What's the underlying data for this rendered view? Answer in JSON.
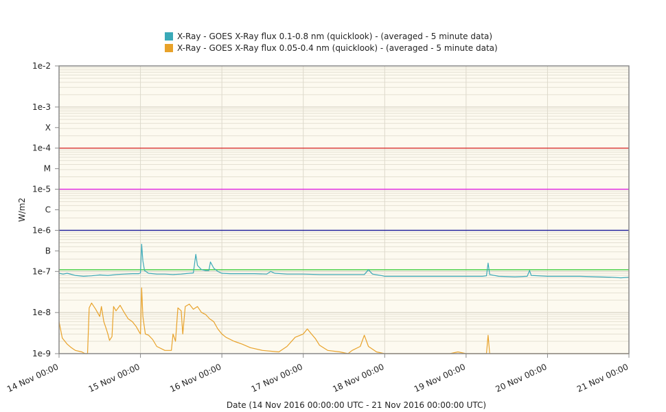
{
  "chart_data": {
    "type": "line",
    "xlabel": "Date (14 Nov 2016 00:00:00 UTC - 21 Nov 2016 00:00:00 UTC)",
    "ylabel": "W/m2",
    "yscale": "log",
    "ylim": [
      1e-09,
      0.01
    ],
    "y_ticks": [
      {
        "label": "1e-2",
        "value": 0.01
      },
      {
        "label": "1e-3",
        "value": 0.001
      },
      {
        "label": "X",
        "value": 0.000316
      },
      {
        "label": "1e-4",
        "value": 0.0001
      },
      {
        "label": "M",
        "value": 3.16e-05
      },
      {
        "label": "1e-5",
        "value": 1e-05
      },
      {
        "label": "C",
        "value": 3.16e-06
      },
      {
        "label": "1e-6",
        "value": 1e-06
      },
      {
        "label": "B",
        "value": 3.16e-07
      },
      {
        "label": "1e-7",
        "value": 1e-07
      },
      {
        "label": "1e-8",
        "value": 1e-08
      },
      {
        "label": "1e-9",
        "value": 1e-09
      }
    ],
    "x_ticks": [
      "14 Nov 00:00",
      "15 Nov 00:00",
      "16 Nov 00:00",
      "17 Nov 00:00",
      "18 Nov 00:00",
      "19 Nov 00:00",
      "20 Nov 00:00",
      "21 Nov 00:00"
    ],
    "xlim_days": [
      0,
      7
    ],
    "threshold_lines": [
      {
        "value": 0.0001,
        "color": "#d62020"
      },
      {
        "value": 1e-05,
        "color": "#e020e0"
      },
      {
        "value": 1e-06,
        "color": "#1a1a9a"
      },
      {
        "value": 1.1e-07,
        "color": "#3ecf3e"
      }
    ],
    "grid": true,
    "legend_position": "top",
    "series": [
      {
        "name": "X-Ray - GOES X-Ray flux 0.1-0.8 nm (quicklook) -  (averaged - 5 minute data)",
        "color": "#3aa9b8",
        "points": [
          [
            0.0,
            9e-08
          ],
          [
            0.05,
            8.6e-08
          ],
          [
            0.1,
            9e-08
          ],
          [
            0.2,
            8e-08
          ],
          [
            0.3,
            7.6e-08
          ],
          [
            0.4,
            7.8e-08
          ],
          [
            0.5,
            8.2e-08
          ],
          [
            0.6,
            8e-08
          ],
          [
            0.7,
            8.4e-08
          ],
          [
            0.8,
            8.6e-08
          ],
          [
            0.9,
            8.8e-08
          ],
          [
            0.98,
            8.8e-08
          ],
          [
            1.0,
            9.2e-08
          ],
          [
            1.015,
            4.6e-07
          ],
          [
            1.03,
            1.8e-07
          ],
          [
            1.05,
            1.05e-07
          ],
          [
            1.1,
            9e-08
          ],
          [
            1.2,
            8.6e-08
          ],
          [
            1.3,
            8.6e-08
          ],
          [
            1.4,
            8.4e-08
          ],
          [
            1.5,
            8.6e-08
          ],
          [
            1.6,
            9e-08
          ],
          [
            1.65,
            9.2e-08
          ],
          [
            1.68,
            2.6e-07
          ],
          [
            1.7,
            1.4e-07
          ],
          [
            1.75,
            1.1e-07
          ],
          [
            1.8,
            1.05e-07
          ],
          [
            1.84,
            1.05e-07
          ],
          [
            1.86,
            1.7e-07
          ],
          [
            1.9,
            1.2e-07
          ],
          [
            1.95,
            1e-07
          ],
          [
            2.0,
            9e-08
          ],
          [
            2.1,
            8.8e-08
          ],
          [
            2.2,
            8.8e-08
          ],
          [
            2.4,
            8.8e-08
          ],
          [
            2.55,
            8.6e-08
          ],
          [
            2.6,
            1e-07
          ],
          [
            2.65,
            9e-08
          ],
          [
            2.8,
            8.6e-08
          ],
          [
            3.0,
            8.6e-08
          ],
          [
            3.2,
            8.4e-08
          ],
          [
            3.4,
            8.4e-08
          ],
          [
            3.6,
            8.4e-08
          ],
          [
            3.75,
            8.4e-08
          ],
          [
            3.8,
            1.1e-07
          ],
          [
            3.85,
            8.6e-08
          ],
          [
            3.95,
            8e-08
          ],
          [
            4.0,
            7.6e-08
          ],
          [
            4.2,
            7.6e-08
          ],
          [
            4.4,
            7.6e-08
          ],
          [
            4.6,
            7.6e-08
          ],
          [
            4.8,
            7.6e-08
          ],
          [
            5.0,
            7.6e-08
          ],
          [
            5.2,
            7.6e-08
          ],
          [
            5.25,
            7.8e-08
          ],
          [
            5.27,
            1.6e-07
          ],
          [
            5.29,
            8.4e-08
          ],
          [
            5.4,
            7.6e-08
          ],
          [
            5.6,
            7.4e-08
          ],
          [
            5.75,
            7.6e-08
          ],
          [
            5.78,
            1.05e-07
          ],
          [
            5.8,
            8e-08
          ],
          [
            6.0,
            7.6e-08
          ],
          [
            6.2,
            7.6e-08
          ],
          [
            6.4,
            7.6e-08
          ],
          [
            6.6,
            7.4e-08
          ],
          [
            6.8,
            7.2e-08
          ],
          [
            6.9,
            7e-08
          ],
          [
            7.0,
            7.2e-08
          ]
        ]
      },
      {
        "name": "X-Ray - GOES X-Ray flux 0.05-0.4 nm (quicklook) -  (averaged - 5 minute data)",
        "color": "#e8a22a",
        "points": [
          [
            0.0,
            6e-09
          ],
          [
            0.04,
            2.4e-09
          ],
          [
            0.1,
            1.7e-09
          ],
          [
            0.15,
            1.4e-09
          ],
          [
            0.2,
            1.2e-09
          ],
          [
            0.28,
            1.1e-09
          ],
          [
            0.32,
            1e-09
          ],
          [
            0.35,
            1e-09
          ],
          [
            0.37,
            1.3e-08
          ],
          [
            0.4,
            1.7e-08
          ],
          [
            0.45,
            1.2e-08
          ],
          [
            0.5,
            8e-09
          ],
          [
            0.52,
            1.4e-08
          ],
          [
            0.55,
            6e-09
          ],
          [
            0.58,
            4e-09
          ],
          [
            0.6,
            3e-09
          ],
          [
            0.62,
            2.1e-09
          ],
          [
            0.65,
            2.6e-09
          ],
          [
            0.67,
            1.4e-08
          ],
          [
            0.7,
            1.1e-08
          ],
          [
            0.75,
            1.5e-08
          ],
          [
            0.8,
            1e-08
          ],
          [
            0.85,
            7e-09
          ],
          [
            0.9,
            6e-09
          ],
          [
            0.95,
            4.5e-09
          ],
          [
            0.98,
            3.5e-09
          ],
          [
            1.0,
            3e-09
          ],
          [
            1.015,
            4e-08
          ],
          [
            1.03,
            8e-09
          ],
          [
            1.06,
            3e-09
          ],
          [
            1.1,
            2.8e-09
          ],
          [
            1.15,
            2.2e-09
          ],
          [
            1.2,
            1.5e-09
          ],
          [
            1.3,
            1.2e-09
          ],
          [
            1.38,
            1.2e-09
          ],
          [
            1.4,
            3e-09
          ],
          [
            1.43,
            2e-09
          ],
          [
            1.46,
            1.3e-08
          ],
          [
            1.5,
            1.1e-08
          ],
          [
            1.52,
            3e-09
          ],
          [
            1.55,
            1.4e-08
          ],
          [
            1.6,
            1.6e-08
          ],
          [
            1.65,
            1.2e-08
          ],
          [
            1.7,
            1.4e-08
          ],
          [
            1.75,
            1e-08
          ],
          [
            1.8,
            9e-09
          ],
          [
            1.85,
            7e-09
          ],
          [
            1.9,
            6e-09
          ],
          [
            1.95,
            4e-09
          ],
          [
            2.0,
            3e-09
          ],
          [
            2.05,
            2.5e-09
          ],
          [
            2.15,
            2e-09
          ],
          [
            2.25,
            1.7e-09
          ],
          [
            2.35,
            1.4e-09
          ],
          [
            2.5,
            1.2e-09
          ],
          [
            2.7,
            1.1e-09
          ],
          [
            2.8,
            1.5e-09
          ],
          [
            2.9,
            2.5e-09
          ],
          [
            3.0,
            3e-09
          ],
          [
            3.05,
            4e-09
          ],
          [
            3.1,
            3e-09
          ],
          [
            3.15,
            2.3e-09
          ],
          [
            3.2,
            1.6e-09
          ],
          [
            3.3,
            1.2e-09
          ],
          [
            3.45,
            1.1e-09
          ],
          [
            3.55,
            1e-09
          ],
          [
            3.6,
            1.2e-09
          ],
          [
            3.7,
            1.5e-09
          ],
          [
            3.75,
            2.8e-09
          ],
          [
            3.8,
            1.5e-09
          ],
          [
            3.9,
            1.1e-09
          ],
          [
            4.0,
            1e-09
          ],
          [
            4.3,
            1e-09
          ],
          [
            4.6,
            1e-09
          ],
          [
            4.8,
            1e-09
          ],
          [
            4.9,
            1.1e-09
          ],
          [
            5.0,
            1e-09
          ],
          [
            5.25,
            1e-09
          ],
          [
            5.27,
            2.8e-09
          ],
          [
            5.29,
            1e-09
          ],
          [
            5.5,
            1e-09
          ],
          [
            5.8,
            1e-09
          ],
          [
            6.0,
            1e-09
          ],
          [
            6.3,
            1e-09
          ],
          [
            6.5,
            1e-09
          ],
          [
            6.7,
            1e-09
          ],
          [
            7.0,
            1e-09
          ]
        ]
      }
    ]
  }
}
